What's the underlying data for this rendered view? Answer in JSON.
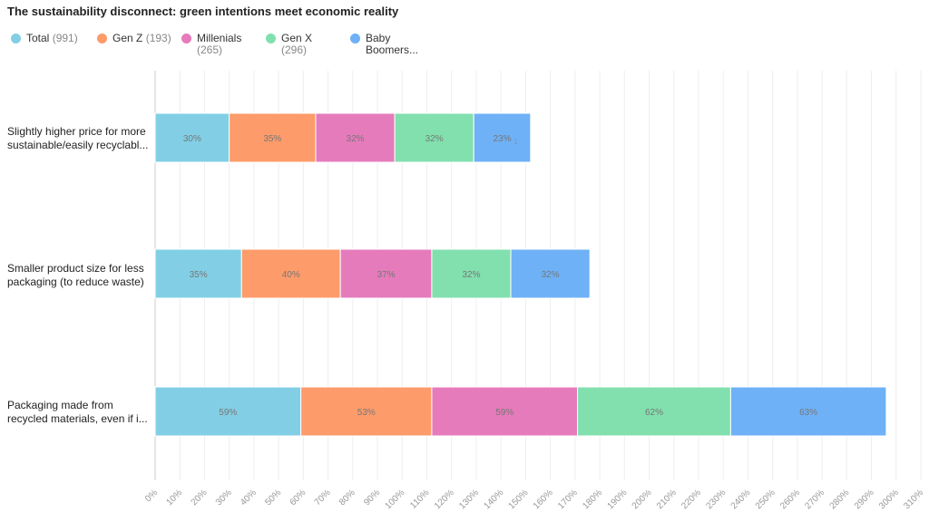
{
  "chart_data": {
    "type": "bar",
    "stacked": true,
    "orientation": "horizontal",
    "title": "The sustainability disconnect: green intentions meet economic reality",
    "categories": [
      "Slightly higher price for more sustainable/easily recyclabl...",
      "Smaller product size for less packaging (to reduce waste)",
      "Packaging made from recycled materials, even if i..."
    ],
    "series": [
      {
        "name": "Total",
        "count": "(991)",
        "color": "#82cfe5",
        "values": [
          30,
          35,
          59
        ]
      },
      {
        "name": "Gen Z",
        "count": "(193)",
        "color": "#fe9b6a",
        "values": [
          35,
          40,
          53
        ]
      },
      {
        "name": "Millenials",
        "count": "(265)",
        "color": "#e57bbb",
        "values": [
          32,
          37,
          59
        ]
      },
      {
        "name": "Gen X",
        "count": "(296)",
        "color": "#81e0ae",
        "values": [
          32,
          32,
          62
        ]
      },
      {
        "name": "Baby Boomers...",
        "count": "",
        "color": "#6eb1f7",
        "values": [
          23,
          32,
          63
        ]
      }
    ],
    "xlim": [
      0,
      310
    ],
    "xticks": [
      "0%",
      "10%",
      "20%",
      "30%",
      "40%",
      "50%",
      "60%",
      "70%",
      "80%",
      "90%",
      "100%",
      "110%",
      "120%",
      "130%",
      "140%",
      "150%",
      "160%",
      "170%",
      "180%",
      "190%",
      "200%",
      "210%",
      "220%",
      "230%",
      "240%",
      "250%",
      "260%",
      "270%",
      "280%",
      "290%",
      "300%",
      "310%"
    ],
    "grid": true,
    "legend": "top-left"
  }
}
